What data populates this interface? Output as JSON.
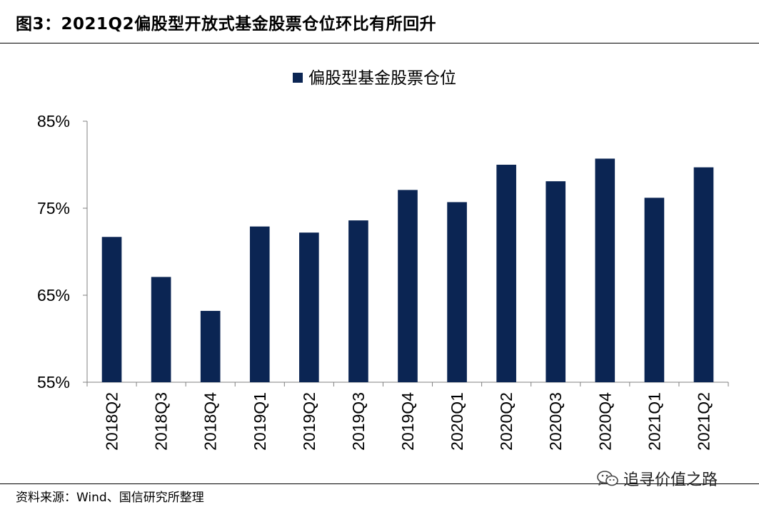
{
  "header": {
    "title": "图3：2021Q2偏股型开放式基金股票仓位环比有所回升"
  },
  "footer": {
    "source": "资料来源：Wind、国信研究所整理",
    "watermark": "追寻价值之路",
    "watermark_icon": "wechat-icon"
  },
  "colors": {
    "bar": "#0b2553",
    "axis": "#808080",
    "text": "#000000"
  },
  "chart_data": {
    "type": "bar",
    "title": "",
    "xlabel": "",
    "ylabel": "",
    "categories": [
      "2018Q2",
      "2018Q3",
      "2018Q4",
      "2019Q1",
      "2019Q2",
      "2019Q3",
      "2019Q4",
      "2020Q1",
      "2020Q2",
      "2020Q3",
      "2020Q4",
      "2021Q1",
      "2021Q2"
    ],
    "series": [
      {
        "name": "偏股型基金股票仓位",
        "values": [
          71.7,
          67.1,
          63.2,
          72.9,
          72.2,
          73.6,
          77.1,
          75.7,
          80.0,
          78.1,
          80.7,
          76.2,
          79.7
        ]
      }
    ],
    "ylim": [
      55,
      85
    ],
    "yticks": [
      55,
      65,
      75,
      85
    ],
    "ytick_labels": [
      "55%",
      "65%",
      "75%",
      "85%"
    ],
    "grid": false,
    "legend_position": "top-center"
  }
}
